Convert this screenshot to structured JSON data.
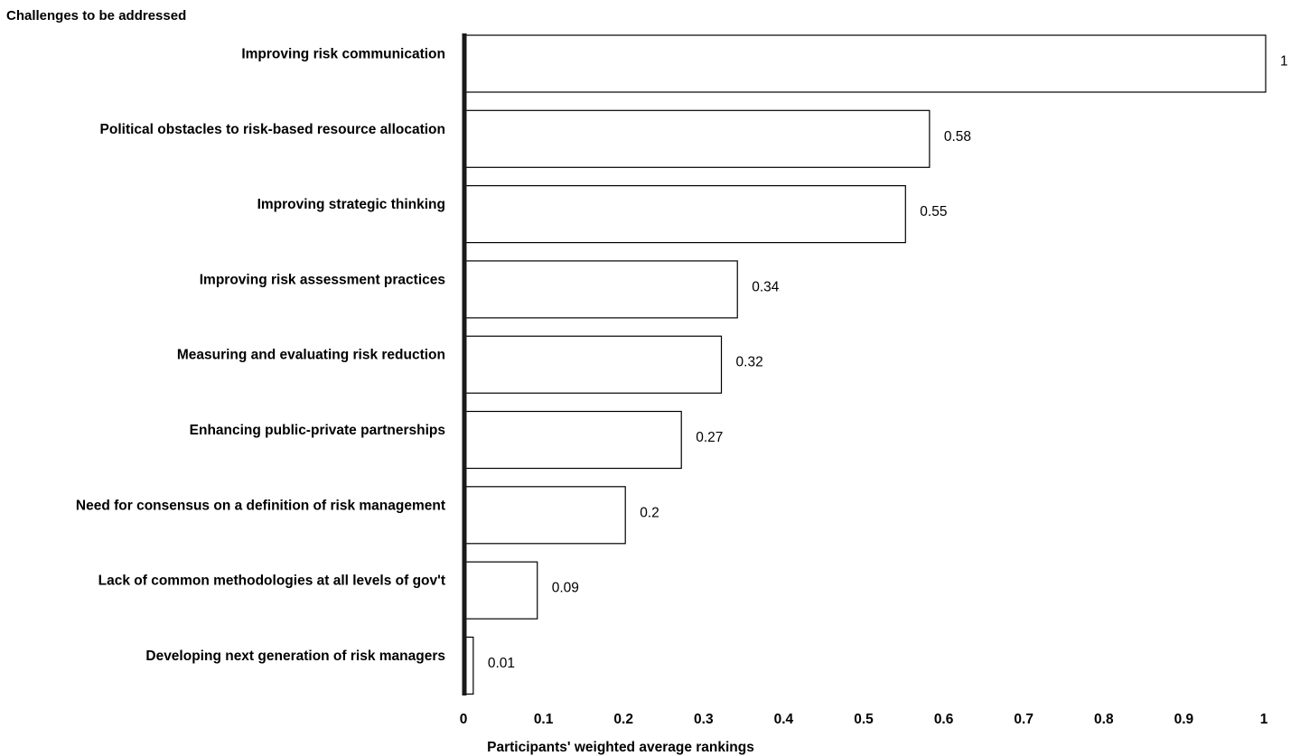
{
  "chart_data": {
    "type": "bar",
    "orientation": "horizontal",
    "title": "Challenges to be addressed",
    "xlabel": "Participants' weighted average rankings",
    "ylabel": "",
    "categories": [
      "Improving risk communication",
      "Political obstacles to risk-based resource allocation",
      "Improving strategic thinking",
      "Improving risk assessment practices",
      "Measuring and evaluating risk reduction",
      "Enhancing public-private partnerships",
      "Need for consensus on a definition of risk management",
      "Lack of common methodologies at all levels of gov't",
      "Developing next generation of risk managers"
    ],
    "values": [
      1,
      0.58,
      0.55,
      0.34,
      0.32,
      0.27,
      0.2,
      0.09,
      0.01
    ],
    "value_labels": [
      "1",
      "0.58",
      "0.55",
      "0.34",
      "0.32",
      "0.27",
      "0.2",
      "0.09",
      "0.01"
    ],
    "xlim": [
      0,
      1
    ],
    "xticks": [
      0,
      0.1,
      0.2,
      0.3,
      0.4,
      0.5,
      0.6,
      0.7,
      0.8,
      0.9,
      1
    ],
    "xtick_labels": [
      "0",
      "0.1",
      "0.2",
      "0.3",
      "0.4",
      "0.5",
      "0.6",
      "0.7",
      "0.8",
      "0.9",
      "1"
    ],
    "grid": false,
    "legend": "none",
    "colors": {
      "bar_fill": "#ffffff",
      "bar_stroke": "#000000",
      "axis": "#1a1a1a",
      "text": "#000000"
    }
  }
}
